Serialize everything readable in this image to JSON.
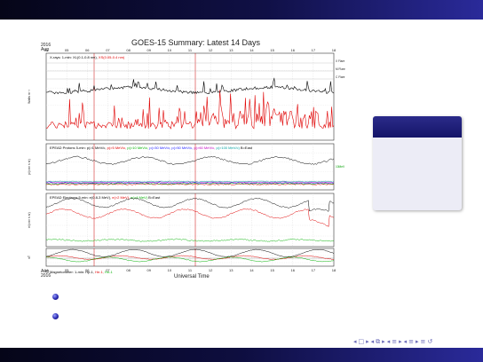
{
  "slide": {
    "figure": {
      "title": "GOES-15 Summary: Latest 14 Days",
      "year_top": "2016",
      "month_top": "Aug",
      "year_bottom": "2016",
      "month_bottom": "Aug",
      "xlabel": "Universal Time",
      "day_ticks": [
        "04",
        "05",
        "06",
        "07",
        "08",
        "09",
        "10",
        "11",
        "12",
        "13",
        "14",
        "15",
        "16",
        "17",
        "18"
      ],
      "panels": [
        {
          "ylabel": "Watts m⁻²",
          "legend": [
            {
              "text": "X-rays: 1-min: XL(0.1-0.8 nm), ",
              "color": "#000000"
            },
            {
              "text": "XS(0.05-0.4 nm)",
              "color": "#e00000"
            }
          ],
          "flare_labels": [
            "X Flare",
            "M Flare",
            "C Flare"
          ]
        },
        {
          "ylabel": "p/(cm² s sr)",
          "legend": [
            {
              "text": "EPEAD Protons 5-min: p(>1 MeV/c, ",
              "color": "#000000"
            },
            {
              "text": "p(>5 MeV/c, ",
              "color": "#e00000"
            },
            {
              "text": "p(>10 MeV/c, ",
              "color": "#00b000"
            },
            {
              "text": "p(>30 MeV/c, ",
              "color": "#2020ff"
            },
            {
              "text": "p(>50 MeV/c, ",
              "color": "#2020ff"
            },
            {
              "text": "p(>60 MeV/c, ",
              "color": "#c000c0"
            },
            {
              "text": "p(>100 MeV/c) ",
              "color": "#00a0a0"
            },
            {
              "text": "B=East",
              "color": "#000000"
            }
          ],
          "side_label": "10MeV"
        },
        {
          "ylabel": "e/(cm² s sr)",
          "legend": [
            {
              "text": "EPEAD Electrons 5-min: e(0.8-3 MeV), ",
              "color": "#000000"
            },
            {
              "text": "e(>2 MeV), ",
              "color": "#e00000"
            },
            {
              "text": "e(>4 MeV) ",
              "color": "#00b000"
            },
            {
              "text": "B=East",
              "color": "#000000"
            }
          ]
        },
        {
          "ylabel": "nT",
          "legend": [
            {
              "text": "Magnetometer: 1-min: Hp-1, ",
              "color": "#000000"
            },
            {
              "text": "He-1, ",
              "color": "#e00000"
            },
            {
              "text": "Hn-1",
              "color": "#00b000"
            }
          ],
          "yticks": [
            "200",
            "100",
            "0",
            "-100",
            "-200"
          ]
        }
      ]
    },
    "colors": {
      "accent": "#141468",
      "bullet": "#2a2ab0",
      "nav": "#6a6ab8"
    },
    "nav_icons": [
      "nav-prev-icon",
      "nav-next-icon",
      "nav-frame-icon",
      "nav-section-icon",
      "nav-subsection-icon",
      "nav-align-icon",
      "nav-search-icon"
    ]
  }
}
